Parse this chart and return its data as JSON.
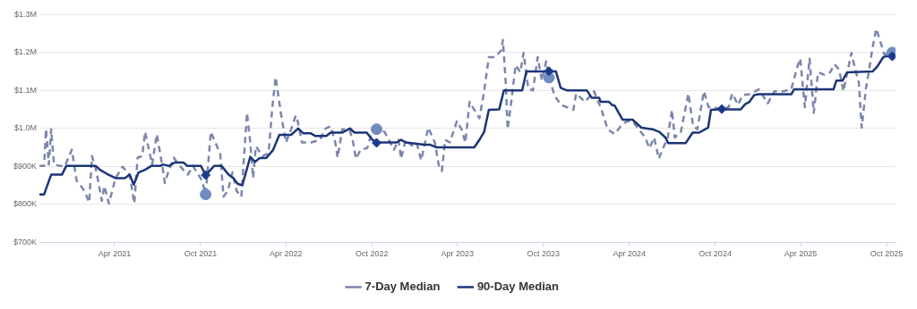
{
  "chart_data": {
    "type": "line",
    "xlim": [
      "2020-10-23",
      "2025-10-20"
    ],
    "ylim": [
      700000,
      1300000
    ],
    "xticks": [
      {
        "value": "2021-04-01",
        "label": "Apr 2021"
      },
      {
        "value": "2021-10-01",
        "label": "Oct 2021"
      },
      {
        "value": "2022-04-01",
        "label": "Apr 2022"
      },
      {
        "value": "2022-10-01",
        "label": "Oct 2022"
      },
      {
        "value": "2023-04-01",
        "label": "Apr 2023"
      },
      {
        "value": "2023-10-01",
        "label": "Oct 2023"
      },
      {
        "value": "2024-04-01",
        "label": "Apr 2024"
      },
      {
        "value": "2024-10-01",
        "label": "Oct 2024"
      },
      {
        "value": "2025-04-01",
        "label": "Apr 2025"
      },
      {
        "value": "2025-10-01",
        "label": "Oct 2025"
      }
    ],
    "yticks": [
      {
        "value": 700000,
        "label": "$700K"
      },
      {
        "value": 800000,
        "label": "$800K"
      },
      {
        "value": 900000,
        "label": "$900K"
      },
      {
        "value": 1000000,
        "label": "$1.0M"
      },
      {
        "value": 1100000,
        "label": "$1.1M"
      },
      {
        "value": 1200000,
        "label": "$1.2M"
      },
      {
        "value": 1300000,
        "label": "$1.3M"
      }
    ],
    "grid": "y",
    "legend": "bottom",
    "series": [
      {
        "name": "7-Day Median",
        "color": "#7c86ab",
        "line_style": "dashed",
        "marker": "none",
        "x": [
          "2020-10-23",
          "2020-11-02",
          "2020-11-06",
          "2020-11-12",
          "2020-11-17",
          "2020-11-23",
          "2020-12-06",
          "2020-12-16",
          "2020-12-31",
          "2021-01-10",
          "2021-01-27",
          "2021-02-06",
          "2021-02-12",
          "2021-02-21",
          "2021-03-05",
          "2021-03-10",
          "2021-03-20",
          "2021-04-03",
          "2021-04-18",
          "2021-05-03",
          "2021-05-13",
          "2021-05-20",
          "2021-05-30",
          "2021-06-05",
          "2021-06-20",
          "2021-06-30",
          "2021-07-13",
          "2021-07-17",
          "2021-07-26",
          "2021-08-05",
          "2021-08-15",
          "2021-09-04",
          "2021-09-15",
          "2021-10-04",
          "2021-10-12",
          "2021-10-23",
          "2021-11-12",
          "2021-11-19",
          "2021-11-28",
          "2021-12-08",
          "2021-12-17",
          "2021-12-27",
          "2022-01-08",
          "2022-01-15",
          "2022-01-21",
          "2022-01-27",
          "2022-02-10",
          "2022-02-23",
          "2022-03-03",
          "2022-03-10",
          "2022-03-22",
          "2022-04-01",
          "2022-04-12",
          "2022-04-22",
          "2022-04-26",
          "2022-05-05",
          "2022-05-24",
          "2022-06-13",
          "2022-06-22",
          "2022-07-05",
          "2022-07-15",
          "2022-07-20",
          "2022-07-30",
          "2022-08-15",
          "2022-08-22",
          "2022-08-28",
          "2022-09-07",
          "2022-09-21",
          "2022-09-30",
          "2022-10-11",
          "2022-10-28",
          "2022-11-09",
          "2022-11-17",
          "2022-11-27",
          "2022-12-02",
          "2022-12-12",
          "2022-12-25",
          "2023-01-04",
          "2023-01-14",
          "2023-01-29",
          "2023-02-12",
          "2023-02-21",
          "2023-02-27",
          "2023-03-06",
          "2023-03-16",
          "2023-03-31",
          "2023-04-10",
          "2023-04-18",
          "2023-04-27",
          "2023-05-07",
          "2023-05-18",
          "2023-05-28",
          "2023-06-07",
          "2023-06-20",
          "2023-07-03",
          "2023-07-07",
          "2023-07-13",
          "2023-07-17",
          "2023-07-24",
          "2023-08-03",
          "2023-08-13",
          "2023-08-20",
          "2023-08-30",
          "2023-09-09",
          "2023-09-19",
          "2023-09-28",
          "2023-10-07",
          "2023-10-13",
          "2023-10-26",
          "2023-11-08",
          "2023-12-04",
          "2023-12-10",
          "2023-12-29",
          "2024-01-17",
          "2024-02-02",
          "2024-02-15",
          "2024-03-01",
          "2024-03-14",
          "2024-03-27",
          "2024-04-08",
          "2024-04-21",
          "2024-05-05",
          "2024-05-14",
          "2024-05-24",
          "2024-06-03",
          "2024-06-12",
          "2024-06-22",
          "2024-07-01",
          "2024-07-07",
          "2024-07-20",
          "2024-08-05",
          "2024-08-15",
          "2024-08-24",
          "2024-09-07",
          "2024-09-17",
          "2024-09-26",
          "2024-10-15",
          "2024-10-30",
          "2024-11-06",
          "2024-11-19",
          "2024-11-28",
          "2024-12-13",
          "2025-01-02",
          "2025-01-21",
          "2025-02-04",
          "2025-02-23",
          "2025-03-12",
          "2025-03-25",
          "2025-03-31",
          "2025-04-10",
          "2025-04-20",
          "2025-04-29",
          "2025-05-08",
          "2025-05-22",
          "2025-06-03",
          "2025-06-12",
          "2025-06-22",
          "2025-07-01",
          "2025-07-18",
          "2025-07-28",
          "2025-08-03",
          "2025-08-09",
          "2025-08-18",
          "2025-08-24",
          "2025-09-01",
          "2025-09-09",
          "2025-09-20",
          "2025-09-26",
          "2025-10-09",
          "2025-10-13"
        ],
        "values": [
          901000,
          901000,
          998000,
          905000,
          998000,
          905000,
          901000,
          900000,
          944000,
          863000,
          835000,
          805000,
          927000,
          888000,
          809000,
          848000,
          802000,
          869000,
          899000,
          878000,
          802000,
          923000,
          927000,
          991000,
          905000,
          985000,
          891000,
          856000,
          891000,
          923000,
          905000,
          878000,
          901000,
          863000,
          826000,
          991000,
          933000,
          820000,
          835000,
          884000,
          835000,
          820000,
          1041000,
          963000,
          869000,
          953000,
          927000,
          935000,
          1056000,
          1135000,
          1034000,
          963000,
          998000,
          1034000,
          1019000,
          963000,
          963000,
          970000,
          998000,
          1006000,
          963000,
          923000,
          998000,
          995000,
          963000,
          920000,
          944000,
          948000,
          985000,
          998000,
          991000,
          963000,
          944000,
          970000,
          920000,
          970000,
          955000,
          963000,
          916000,
          1002000,
          963000,
          899000,
          888000,
          970000,
          963000,
          1019000,
          998000,
          963000,
          1070000,
          1049000,
          1027000,
          1098000,
          1188000,
          1188000,
          1205000,
          1233000,
          1120000,
          998000,
          1062000,
          1167000,
          1148000,
          1199000,
          1105000,
          1100000,
          1188000,
          1126000,
          1177000,
          1134000,
          1084000,
          1062000,
          1049000,
          1092000,
          1070000,
          1098000,
          1049000,
          998000,
          985000,
          1006000,
          1019000,
          1019000,
          998000,
          976000,
          948000,
          976000,
          920000,
          948000,
          976000,
          1049000,
          976000,
          991000,
          1092000,
          1006000,
          998000,
          1098000,
          1056000,
          1056000,
          1051000,
          1056000,
          1092000,
          1062000,
          1088000,
          1090000,
          1103000,
          1066000,
          1098000,
          1098000,
          1103000,
          1163000,
          1184000,
          1056000,
          1184000,
          1041000,
          1148000,
          1141000,
          1148000,
          1169000,
          1155000,
          1098000,
          1199000,
          1148000,
          1120000,
          1002000,
          1105000,
          1148000,
          1212000,
          1263000,
          1220000,
          1195000,
          1200000,
          1200000
        ]
      },
      {
        "name": "90-Day Median",
        "color": "#1c3578",
        "line_style": "solid",
        "marker": "none",
        "x": [
          "2020-10-23",
          "2020-11-02",
          "2020-11-17",
          "2020-12-10",
          "2020-12-19",
          "2021-02-20",
          "2021-03-01",
          "2021-03-16",
          "2021-04-03",
          "2021-04-23",
          "2021-05-03",
          "2021-05-12",
          "2021-05-22",
          "2021-06-05",
          "2021-06-18",
          "2021-07-07",
          "2021-07-13",
          "2021-07-26",
          "2021-08-07",
          "2021-08-26",
          "2021-09-03",
          "2021-10-02",
          "2021-10-12",
          "2021-10-30",
          "2021-11-15",
          "2021-11-30",
          "2021-12-10",
          "2021-12-19",
          "2021-12-29",
          "2022-01-15",
          "2022-01-25",
          "2022-02-04",
          "2022-02-18",
          "2022-03-04",
          "2022-03-18",
          "2022-04-12",
          "2022-04-27",
          "2022-05-08",
          "2022-05-24",
          "2022-06-03",
          "2022-06-26",
          "2022-07-05",
          "2022-07-30",
          "2022-08-15",
          "2022-08-25",
          "2022-09-20",
          "2022-10-02",
          "2022-10-15",
          "2022-11-23",
          "2022-12-02",
          "2022-12-12",
          "2023-01-20",
          "2023-02-02",
          "2023-02-16",
          "2023-05-07",
          "2023-05-18",
          "2023-05-28",
          "2023-06-07",
          "2023-06-29",
          "2023-07-09",
          "2023-08-17",
          "2023-08-26",
          "2023-09-28",
          "2023-10-13",
          "2023-10-28",
          "2023-11-07",
          "2023-11-21",
          "2024-01-02",
          "2024-01-12",
          "2024-01-28",
          "2024-01-31",
          "2024-02-18",
          "2024-02-24",
          "2024-03-01",
          "2024-03-18",
          "2024-04-08",
          "2024-04-27",
          "2024-05-20",
          "2024-06-04",
          "2024-06-17",
          "2024-06-23",
          "2024-07-30",
          "2024-08-14",
          "2024-08-28",
          "2024-09-16",
          "2024-09-22",
          "2024-10-05",
          "2024-11-24",
          "2024-12-04",
          "2024-12-13",
          "2024-12-23",
          "2025-01-02",
          "2025-03-12",
          "2025-03-18",
          "2025-06-10",
          "2025-06-16",
          "2025-06-29",
          "2025-07-09",
          "2025-09-01",
          "2025-09-11",
          "2025-09-24",
          "2025-09-30",
          "2025-10-13"
        ],
        "values": [
          826000,
          826000,
          878000,
          878000,
          901000,
          901000,
          891000,
          880000,
          869000,
          869000,
          878000,
          852000,
          884000,
          891000,
          901000,
          901000,
          905000,
          901000,
          910000,
          910000,
          901000,
          901000,
          877000,
          901000,
          901000,
          878000,
          869000,
          854000,
          850000,
          925000,
          912000,
          922000,
          922000,
          942000,
          983000,
          983000,
          1000000,
          987000,
          987000,
          980000,
          980000,
          989000,
          989000,
          1000000,
          989000,
          989000,
          970000,
          963000,
          963000,
          970000,
          963000,
          957000,
          957000,
          950000,
          950000,
          970000,
          991000,
          1049000,
          1050000,
          1100000,
          1100000,
          1150000,
          1150000,
          1151000,
          1150000,
          1107000,
          1100000,
          1100000,
          1081000,
          1081000,
          1070000,
          1070000,
          1062000,
          1060000,
          1023000,
          1023000,
          1002000,
          998000,
          991000,
          976000,
          961000,
          961000,
          989000,
          989000,
          1002000,
          1049000,
          1050000,
          1050000,
          1064000,
          1070000,
          1088000,
          1090000,
          1090000,
          1103000,
          1103000,
          1126000,
          1126000,
          1148000,
          1150000,
          1163000,
          1188000,
          1190000,
          1190000
        ]
      },
      {
        "type": "scatter",
        "color": "#6f8cc0",
        "marker": "circle",
        "x": [
          "2021-10-12",
          "2022-10-11",
          "2023-10-13",
          "2025-10-13"
        ],
        "values": [
          826000,
          998000,
          1134000,
          1200000
        ]
      },
      {
        "type": "scatter",
        "color": "#1b3a8c",
        "marker": "diamond",
        "x": [
          "2021-10-12",
          "2022-10-11",
          "2023-10-13",
          "2024-10-15",
          "2025-10-13"
        ],
        "values": [
          877000,
          962000,
          1151000,
          1051000,
          1190000
        ]
      }
    ]
  }
}
